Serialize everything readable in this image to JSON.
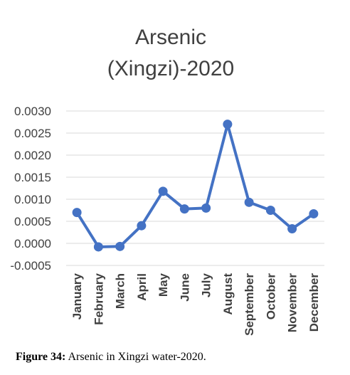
{
  "chart_data": {
    "type": "line",
    "title_line1": "Arsenic",
    "title_line2": "(Xingzi)-2020",
    "xlabel": "",
    "ylabel": "",
    "categories": [
      "January",
      "February",
      "March",
      "April",
      "May",
      "June",
      "July",
      "August",
      "September",
      "October",
      "November",
      "December"
    ],
    "series": [
      {
        "values": [
          0.0007,
          -8e-05,
          -7e-05,
          0.0004,
          0.00118,
          0.00078,
          0.0008,
          0.0027,
          0.00093,
          0.00075,
          0.00033,
          0.00067
        ]
      }
    ],
    "ylim": [
      -0.0005,
      0.003
    ],
    "yticks": [
      "0.0030",
      "0.0025",
      "0.0020",
      "0.0015",
      "0.0010",
      "0.0005",
      "0.0000",
      "-0.0005"
    ],
    "ytick_values": [
      0.003,
      0.0025,
      0.002,
      0.0015,
      0.001,
      0.0005,
      0.0,
      -0.0005
    ],
    "grid": true,
    "legend": "none",
    "line_color": "#4472c4"
  },
  "caption": {
    "label": "Figure 34:",
    "text": " Arsenic in Xingzi water-2020."
  }
}
